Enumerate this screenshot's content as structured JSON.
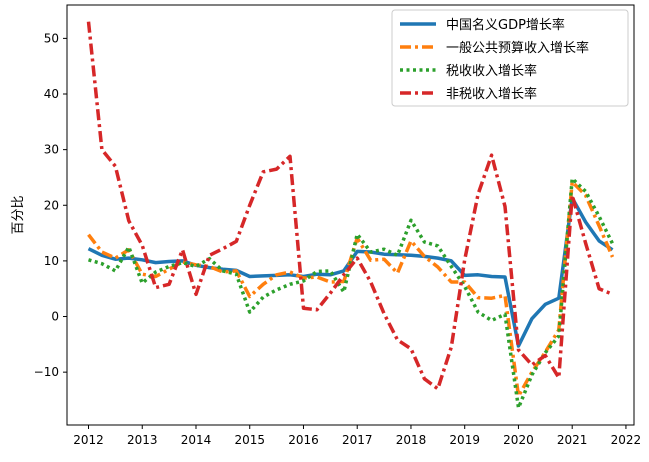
{
  "chart_data": {
    "type": "line",
    "title": "",
    "xlabel": "",
    "ylabel": "百分比",
    "xlim": [
      2011.6,
      2022.15
    ],
    "ylim": [
      -19.5,
      56
    ],
    "x_ticks": [
      2012,
      2013,
      2014,
      2015,
      2016,
      2017,
      2018,
      2019,
      2020,
      2021,
      2022
    ],
    "x_tick_labels": [
      "2012",
      "2013",
      "2014",
      "2015",
      "2016",
      "2017",
      "2018",
      "2019",
      "2020",
      "2021",
      "2022"
    ],
    "y_ticks": [
      -10,
      0,
      10,
      20,
      30,
      40,
      50
    ],
    "y_tick_labels": [
      "−10",
      "0",
      "10",
      "20",
      "30",
      "40",
      "50"
    ],
    "grid": false,
    "legend_position": "top-right",
    "x": [
      2012.0,
      2012.25,
      2012.5,
      2012.75,
      2013.0,
      2013.25,
      2013.5,
      2013.75,
      2014.0,
      2014.25,
      2014.5,
      2014.75,
      2015.0,
      2015.25,
      2015.5,
      2015.75,
      2016.0,
      2016.25,
      2016.5,
      2016.75,
      2017.0,
      2017.25,
      2017.5,
      2017.75,
      2018.0,
      2018.25,
      2018.5,
      2018.75,
      2019.0,
      2019.25,
      2019.5,
      2019.75,
      2020.0,
      2020.25,
      2020.5,
      2020.75,
      2021.0,
      2021.25,
      2021.5,
      2021.75
    ],
    "series": [
      {
        "name": "中国名义GDP增长率",
        "color": "#1f77b4",
        "dash": "solid",
        "values": [
          12.2,
          11.0,
          10.3,
          10.5,
          10.2,
          9.7,
          9.9,
          10.0,
          9.2,
          8.8,
          8.5,
          8.3,
          7.2,
          7.3,
          7.4,
          7.5,
          7.2,
          7.6,
          7.5,
          8.2,
          11.7,
          11.6,
          11.2,
          11.1,
          11.0,
          10.8,
          10.5,
          10.0,
          7.4,
          7.5,
          7.2,
          7.1,
          -5.3,
          -0.4,
          2.2,
          3.3,
          21.3,
          17.0,
          13.6,
          12.0
        ]
      },
      {
        "name": "一般公共预算收入增长率",
        "color": "#ff7f0e",
        "dash": "dashdot",
        "values": [
          14.7,
          11.6,
          10.5,
          12.0,
          7.6,
          7.2,
          8.5,
          9.8,
          9.3,
          9.0,
          8.0,
          8.2,
          3.6,
          5.8,
          7.5,
          8.0,
          6.9,
          7.1,
          6.2,
          6.3,
          14.1,
          10.1,
          10.3,
          7.8,
          13.6,
          10.8,
          8.9,
          6.2,
          6.2,
          3.4,
          3.3,
          3.8,
          -14.3,
          -10.0,
          -6.4,
          -2.4,
          24.2,
          21.8,
          16.3,
          10.7
        ]
      },
      {
        "name": "税收收入增长率",
        "color": "#2ca02c",
        "dash": "dotted",
        "values": [
          10.2,
          9.5,
          8.2,
          12.5,
          6.0,
          8.0,
          9.0,
          9.7,
          9.0,
          10.4,
          8.2,
          7.6,
          0.8,
          3.5,
          4.8,
          5.8,
          6.4,
          8.1,
          8.2,
          4.4,
          14.8,
          11.6,
          12.1,
          11.0,
          17.3,
          13.4,
          12.7,
          9.0,
          5.4,
          0.8,
          -0.7,
          0.4,
          -16.4,
          -10.5,
          -6.5,
          -3.5,
          24.8,
          22.5,
          18.0,
          13.1
        ]
      },
      {
        "name": "非税收入增长率",
        "color": "#d62728",
        "dash": "dashdot",
        "values": [
          53.0,
          30.0,
          27.0,
          17.2,
          12.8,
          5.2,
          5.8,
          12.0,
          4.0,
          11.0,
          12.2,
          13.5,
          20.0,
          26.0,
          26.5,
          28.8,
          1.5,
          1.2,
          4.2,
          7.5,
          10.5,
          6.2,
          0.5,
          -4.2,
          -5.8,
          -11.2,
          -13.0,
          -5.5,
          10.2,
          22.0,
          29.0,
          19.8,
          -6.0,
          -8.7,
          -7.0,
          -11.0,
          21.8,
          13.2,
          5.0,
          4.0
        ]
      }
    ]
  }
}
